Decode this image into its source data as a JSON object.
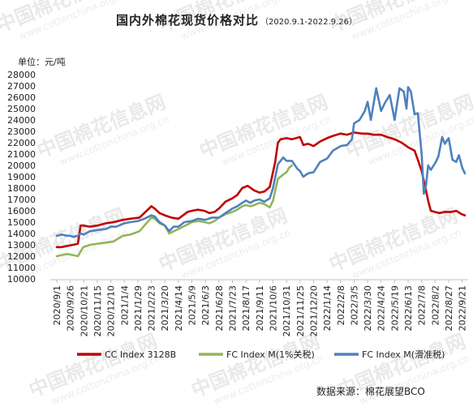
{
  "chart_data": {
    "type": "line",
    "title": "国内外棉花现货价格对比",
    "subtitle": "（2020.9.1-2022.9.26）",
    "ylabel": "单位：元/吨",
    "source": "数据来源：棉花展望BCO",
    "ylim": [
      10000,
      28000
    ],
    "ytick_step": 1000,
    "x_tick_labels": [
      "2020/9/1",
      "2020/9/26",
      "2020/10/21",
      "2020/11/15",
      "2020/12/10",
      "2021/1/4",
      "2021/1/29",
      "2021/2/23",
      "2021/3/20",
      "2021/4/14",
      "2021/5/9",
      "2021/6/3",
      "2021/6/28",
      "2021/7/23",
      "2021/8/17",
      "2021/9/11",
      "2021/10/6",
      "2021/10/31",
      "2021/11/25",
      "2021/12/20",
      "2022/1/14",
      "2022/2/8",
      "2022/3/5",
      "2022/3/30",
      "2022/4/24",
      "2022/5/19",
      "2022/6/13",
      "2022/7/8",
      "2022/8/2",
      "2022/8/27",
      "2022/9/21"
    ],
    "x_range": [
      "2020/9/1",
      "2022/9/26"
    ],
    "legend_position": "bottom",
    "series": [
      {
        "name": "CC Index 3128B",
        "color": "#c00000",
        "x": [
          "2020/9/1",
          "2020/9/10",
          "2020/9/20",
          "2020/10/1",
          "2020/10/10",
          "2020/10/15",
          "2020/10/20",
          "2020/11/1",
          "2020/11/15",
          "2020/12/1",
          "2020/12/15",
          "2021/1/1",
          "2021/1/15",
          "2021/2/1",
          "2021/2/23",
          "2021/3/1",
          "2021/3/10",
          "2021/3/20",
          "2021/4/1",
          "2021/4/14",
          "2021/5/1",
          "2021/5/9",
          "2021/5/20",
          "2021/6/1",
          "2021/6/10",
          "2021/6/20",
          "2021/6/28",
          "2021/7/10",
          "2021/7/23",
          "2021/8/1",
          "2021/8/10",
          "2021/8/20",
          "2021/9/1",
          "2021/9/11",
          "2021/9/20",
          "2021/9/30",
          "2021/10/10",
          "2021/10/15",
          "2021/10/20",
          "2021/10/31",
          "2021/11/10",
          "2021/11/25",
          "2021/12/1",
          "2021/12/10",
          "2021/12/20",
          "2022/1/1",
          "2022/1/14",
          "2022/1/25",
          "2022/2/8",
          "2022/2/20",
          "2022/3/5",
          "2022/3/20",
          "2022/3/30",
          "2022/4/10",
          "2022/4/24",
          "2022/5/5",
          "2022/5/19",
          "2022/6/1",
          "2022/6/13",
          "2022/6/25",
          "2022/7/1",
          "2022/7/8",
          "2022/7/15",
          "2022/7/20",
          "2022/7/25",
          "2022/8/1",
          "2022/8/10",
          "2022/8/20",
          "2022/9/1",
          "2022/9/10",
          "2022/9/20",
          "2022/9/26"
        ],
        "values": [
          12800,
          12800,
          12900,
          13000,
          13100,
          14700,
          14700,
          14600,
          14700,
          14900,
          15000,
          15200,
          15300,
          15400,
          16400,
          16200,
          15800,
          15600,
          15400,
          15300,
          15900,
          16000,
          16100,
          16000,
          15800,
          15900,
          16200,
          16800,
          17100,
          17400,
          18000,
          18200,
          17800,
          17600,
          17700,
          18100,
          20300,
          22000,
          22300,
          22400,
          22300,
          22500,
          21800,
          21900,
          21700,
          22100,
          22400,
          22600,
          22800,
          22700,
          22900,
          22800,
          22800,
          22700,
          22700,
          22500,
          22300,
          22000,
          21600,
          21300,
          20500,
          19500,
          18000,
          16900,
          16000,
          15900,
          15800,
          15900,
          15900,
          16000,
          15700,
          15600
        ]
      },
      {
        "name": "FC Index M(1%关税)",
        "color": "#92b55a",
        "x": [
          "2020/9/1",
          "2020/9/10",
          "2020/9/20",
          "2020/10/1",
          "2020/10/10",
          "2020/10/15",
          "2020/10/20",
          "2020/11/1",
          "2020/11/15",
          "2020/12/1",
          "2020/12/15",
          "2021/1/1",
          "2021/1/15",
          "2021/2/1",
          "2021/2/23",
          "2021/3/1",
          "2021/3/10",
          "2021/3/20",
          "2021/3/28",
          "2021/4/14",
          "2021/5/1",
          "2021/5/9",
          "2021/5/20",
          "2021/6/1",
          "2021/6/10",
          "2021/6/20",
          "2021/6/28",
          "2021/7/10",
          "2021/7/23",
          "2021/8/1",
          "2021/8/10",
          "2021/8/17",
          "2021/8/25",
          "2021/9/1",
          "2021/9/11",
          "2021/9/20",
          "2021/9/30",
          "2021/10/6",
          "2021/10/15",
          "2021/10/25",
          "2021/10/31",
          "2021/11/5",
          "2021/11/10"
        ],
        "values": [
          12000,
          12100,
          12200,
          12100,
          12000,
          12400,
          12800,
          13000,
          13100,
          13200,
          13300,
          13800,
          13900,
          14200,
          15400,
          15300,
          14900,
          14700,
          14000,
          14400,
          14800,
          15000,
          15100,
          15000,
          14900,
          15100,
          15400,
          15700,
          15900,
          16100,
          16400,
          16500,
          16400,
          16500,
          16700,
          16600,
          16300,
          16900,
          18800,
          19200,
          19400,
          19800,
          20000
        ]
      },
      {
        "name": "FC Index M(滑准税)",
        "color": "#4f81bd",
        "x": [
          "2020/9/1",
          "2020/9/10",
          "2020/9/20",
          "2020/9/26",
          "2020/10/1",
          "2020/10/10",
          "2020/10/15",
          "2020/10/21",
          "2020/11/1",
          "2020/11/15",
          "2020/12/1",
          "2020/12/10",
          "2020/12/20",
          "2021/1/4",
          "2021/1/15",
          "2021/1/29",
          "2021/2/10",
          "2021/2/23",
          "2021/3/1",
          "2021/3/10",
          "2021/3/20",
          "2021/3/28",
          "2021/4/5",
          "2021/4/14",
          "2021/4/25",
          "2021/5/9",
          "2021/5/20",
          "2021/6/3",
          "2021/6/15",
          "2021/6/28",
          "2021/7/10",
          "2021/7/23",
          "2021/8/1",
          "2021/8/10",
          "2021/8/17",
          "2021/8/25",
          "2021/9/1",
          "2021/9/11",
          "2021/9/20",
          "2021/9/30",
          "2021/10/6",
          "2021/10/15",
          "2021/10/25",
          "2021/10/31",
          "2021/11/10",
          "2021/11/20",
          "2021/11/25",
          "2021/12/1",
          "2021/12/10",
          "2021/12/20",
          "2022/1/1",
          "2022/1/14",
          "2022/1/25",
          "2022/2/8",
          "2022/2/20",
          "2022/3/1",
          "2022/3/5",
          "2022/3/15",
          "2022/3/25",
          "2022/3/30",
          "2022/4/5",
          "2022/4/15",
          "2022/4/24",
          "2022/5/1",
          "2022/5/10",
          "2022/5/19",
          "2022/5/28",
          "2022/6/5",
          "2022/6/10",
          "2022/6/13",
          "2022/6/18",
          "2022/6/25",
          "2022/7/1",
          "2022/7/8",
          "2022/7/12",
          "2022/7/16",
          "2022/7/20",
          "2022/7/25",
          "2022/8/2",
          "2022/8/8",
          "2022/8/15",
          "2022/8/20",
          "2022/8/27",
          "2022/9/3",
          "2022/9/10",
          "2022/9/15",
          "2022/9/21",
          "2022/9/26"
        ],
        "values": [
          13800,
          13900,
          13800,
          13800,
          13700,
          13800,
          14000,
          13900,
          14200,
          14300,
          14400,
          14600,
          14600,
          14900,
          15000,
          15100,
          15300,
          15600,
          15500,
          15000,
          14700,
          14200,
          14600,
          14600,
          15000,
          15100,
          15300,
          15200,
          15400,
          15400,
          15800,
          16200,
          16400,
          16700,
          16900,
          16700,
          16900,
          17000,
          16800,
          17100,
          18000,
          20100,
          20700,
          20400,
          20400,
          19700,
          19500,
          19000,
          19300,
          19400,
          20300,
          20600,
          21300,
          21700,
          21800,
          22300,
          23700,
          24000,
          24800,
          25600,
          24000,
          26800,
          24800,
          25500,
          26200,
          24000,
          26800,
          26500,
          25000,
          26900,
          26500,
          24500,
          24600,
          21000,
          17500,
          18200,
          20000,
          19600,
          20200,
          20800,
          22500,
          21900,
          22400,
          20500,
          20300,
          20900,
          19800,
          19300
        ]
      }
    ]
  },
  "watermark": {
    "cn_text": "中国棉花信息网",
    "url_text": "www.cottonchina.org.cn"
  }
}
